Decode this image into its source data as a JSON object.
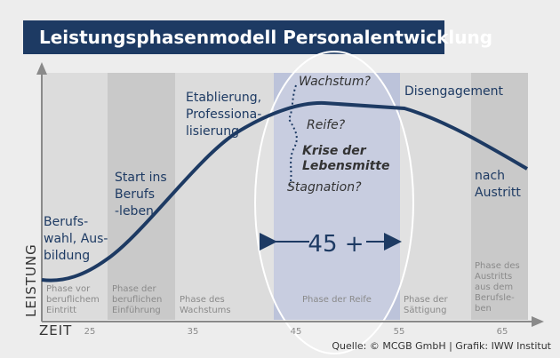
{
  "title": "Leistungsphasenmodell Personalentwicklung",
  "axes": {
    "y_label": "LEISTUNG",
    "x_label": "ZEIT",
    "x_ticks": [
      "25",
      "35",
      "45",
      "55",
      "65"
    ]
  },
  "phases": [
    [
      "Phase vor",
      "beruflichem",
      "Eintritt"
    ],
    [
      "Phase der",
      "beruflichen",
      "Einführung"
    ],
    [
      "Phase des",
      "Wachstums"
    ],
    [
      "Phase der Reife"
    ],
    [
      "Phase der",
      "Sättigung"
    ],
    [
      "Phase des",
      "Austritts",
      "aus dem",
      "Berufsle-",
      "ben"
    ]
  ],
  "stages": {
    "berufswahl": [
      "Berufs-",
      "wahl, Aus-",
      "bildung"
    ],
    "start": [
      "Start ins",
      "Berufs",
      "-leben"
    ],
    "etablierung": [
      "Etablierung,",
      "Professiona-",
      "lisierung"
    ],
    "disengagement": [
      "Disengagement"
    ],
    "austritt": [
      "nach",
      "Austritt"
    ]
  },
  "crisis": {
    "wachstum": "Wachstum?",
    "reife": "Reife?",
    "krise": [
      "Krise der",
      "Lebensmitte"
    ],
    "stagnation": "Stagnation?"
  },
  "age_marker": "45 +",
  "source": "Quelle: © MCGB GmbH | Grafik: IWW Institut",
  "colors": {
    "navy": "#1d3a63",
    "band_light": "#dcdcdc",
    "band_dark": "#c9c9c9",
    "band_reife": "#bcc3da",
    "text_gray": "#8a8a8a"
  }
}
